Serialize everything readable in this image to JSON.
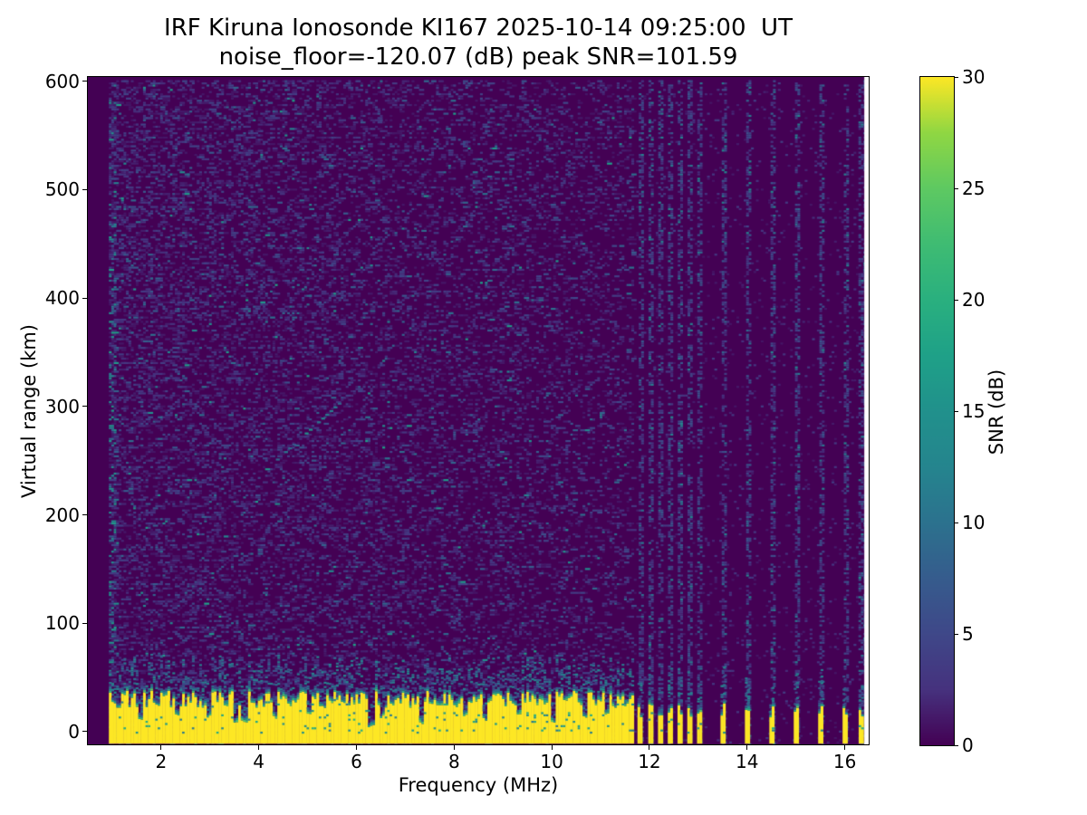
{
  "title": {
    "line1": "IRF Kiruna Ionosonde KI167 2025-10-14 09:25:00  UT",
    "line2": "noise_floor=-120.07 (dB) peak SNR=101.59"
  },
  "chart_data": {
    "type": "heatmap",
    "title": "IRF Kiruna Ionosonde KI167 2025-10-14 09:25:00  UT",
    "subtitle": "noise_floor=-120.07 (dB) peak SNR=101.59",
    "xlabel": "Frequency (MHz)",
    "ylabel": "Virtual range (km)",
    "colorbar_label": "SNR (dB)",
    "x_ticks": [
      2,
      4,
      6,
      8,
      10,
      12,
      14,
      16
    ],
    "y_ticks": [
      0,
      100,
      200,
      300,
      400,
      500,
      600
    ],
    "colorbar_ticks": [
      0,
      5,
      10,
      15,
      20,
      25,
      30
    ],
    "xlim": [
      0.5,
      16.49
    ],
    "ylim": [
      -11.7,
      604
    ],
    "clim": [
      0,
      30
    ],
    "colormap": "viridis",
    "grid": false,
    "station": "IRF Kiruna Ionosonde KI167",
    "timestamp_ut": "2025-10-14 09:25:00",
    "noise_floor_db": -120.07,
    "peak_snr_db": 101.59,
    "features": {
      "seed": 11,
      "mesh": {
        "f_start": 0.93,
        "f_end": 16.4,
        "df": 0.05,
        "km_min": -11,
        "km_max": 602,
        "dkm": 2
      },
      "background_noise": {
        "density_at_low_freq": 0.34,
        "density_slope_per_mhz": -0.014,
        "left_column_boost_until_mhz": 1.08,
        "right_region_density": 0.05
      },
      "ground_band": {
        "f_end": 11.66,
        "top_km_min": 22,
        "top_km_max": 38,
        "notches": [
          {
            "f": 1.55,
            "top": 10
          },
          {
            "f": 2.3,
            "top": 14
          },
          {
            "f": 2.95,
            "top": 12
          },
          {
            "f": 3.5,
            "top": 6
          },
          {
            "f": 3.68,
            "top": 8
          },
          {
            "f": 4.3,
            "top": 12
          },
          {
            "f": 5.0,
            "top": 14
          },
          {
            "f": 6.28,
            "top": 4
          },
          {
            "f": 6.5,
            "top": 12
          },
          {
            "f": 7.32,
            "top": 6
          },
          {
            "f": 8.2,
            "top": 14
          },
          {
            "f": 8.6,
            "top": 10
          },
          {
            "f": 9.3,
            "top": 14
          },
          {
            "f": 10.02,
            "top": 8
          },
          {
            "f": 10.65,
            "top": 12
          },
          {
            "f": 11.1,
            "top": 14
          }
        ]
      },
      "broadcast_stripes": {
        "frequencies": [
          11.8,
          12.02,
          12.22,
          12.42,
          12.62,
          12.82,
          13.02,
          13.5,
          14.0,
          14.5,
          15.0,
          15.5,
          16.0,
          16.33
        ],
        "column_density": 0.45,
        "bottom_top_km": [
          12,
          26
        ]
      },
      "echo_trace": {
        "f0": 4.35,
        "km0": 252,
        "f1": 5.7,
        "km1": 307
      }
    }
  }
}
